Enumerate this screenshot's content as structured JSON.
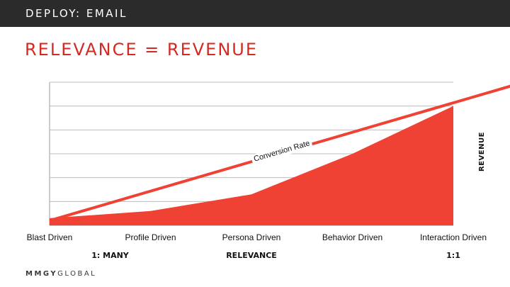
{
  "header": {
    "section_title": "DEPLOY: EMAIL",
    "slide_title": "RELEVANCE = REVENUE"
  },
  "brand": {
    "bold": "MMGY",
    "light": "GLOBAL"
  },
  "colors": {
    "accent": "#d42a22",
    "area": "#ef4234",
    "topbar": "#2b2b2b"
  },
  "chart_data": {
    "type": "area",
    "categories": [
      "Blast Driven",
      "Profile Driven",
      "Persona Driven",
      "Behavior Driven",
      "Interaction Driven"
    ],
    "series": [
      {
        "values": [
          0.3,
          0.6,
          1.3,
          3.0,
          5.0
        ]
      }
    ],
    "ylabel": "REVENUE",
    "ylim": [
      0,
      6
    ],
    "grid": true,
    "annotation": {
      "label": "Conversion Rate",
      "from": [
        0,
        0.2
      ],
      "to": [
        4.7,
        6.0
      ]
    },
    "axis_groups": [
      {
        "label": "1: MANY",
        "at": 0.6
      },
      {
        "label": "RELEVANCE",
        "at": 2
      },
      {
        "label": "1:1",
        "at": 4
      }
    ]
  }
}
